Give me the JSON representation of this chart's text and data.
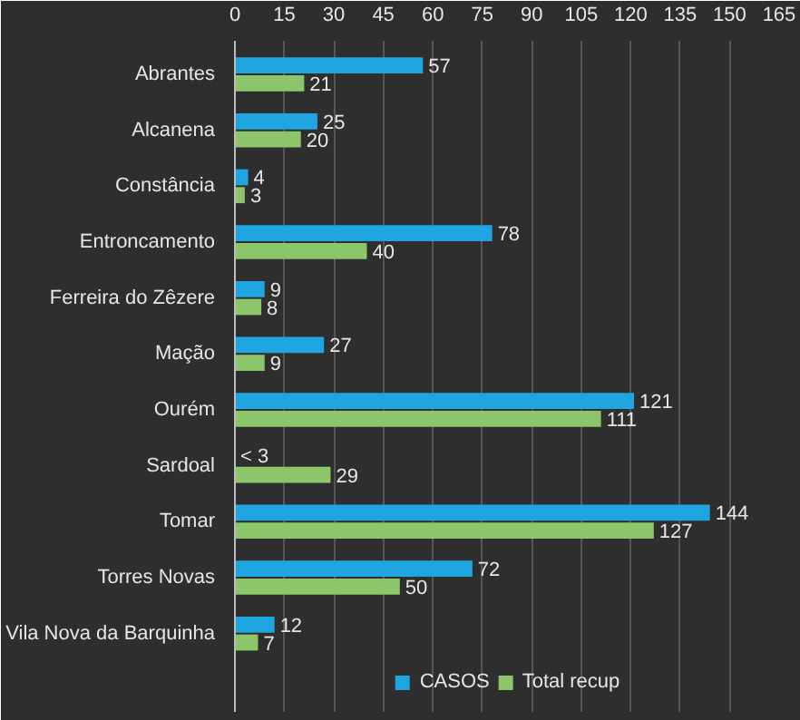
{
  "chart_data": {
    "type": "bar",
    "orientation": "horizontal",
    "categories": [
      "Abrantes",
      "Alcanena",
      "Constância",
      "Entroncamento",
      "Ferreira do Zêzere",
      "Mação",
      "Ourém",
      "Sardoal",
      "Tomar",
      "Torres Novas",
      "Vila Nova da Barquinha"
    ],
    "series": [
      {
        "name": "CASOS",
        "color": "#1fa6e0",
        "values": [
          57,
          25,
          4,
          78,
          9,
          27,
          121,
          null,
          144,
          72,
          12
        ],
        "value_labels": [
          "57",
          "25",
          "4",
          "78",
          "9",
          "27",
          "121",
          "< 3",
          "144",
          "72",
          "12"
        ]
      },
      {
        "name": "Total recup",
        "color": "#8cc56a",
        "values": [
          21,
          20,
          3,
          40,
          8,
          9,
          111,
          29,
          127,
          50,
          7
        ],
        "value_labels": [
          "21",
          "20",
          "3",
          "40",
          "8",
          "9",
          "111",
          "29",
          "127",
          "50",
          "7"
        ]
      }
    ],
    "xlim": [
      0,
      165
    ],
    "xticks": [
      0,
      15,
      30,
      45,
      60,
      75,
      90,
      105,
      120,
      135,
      150,
      165
    ],
    "grid": "x",
    "legend": "bottom"
  }
}
